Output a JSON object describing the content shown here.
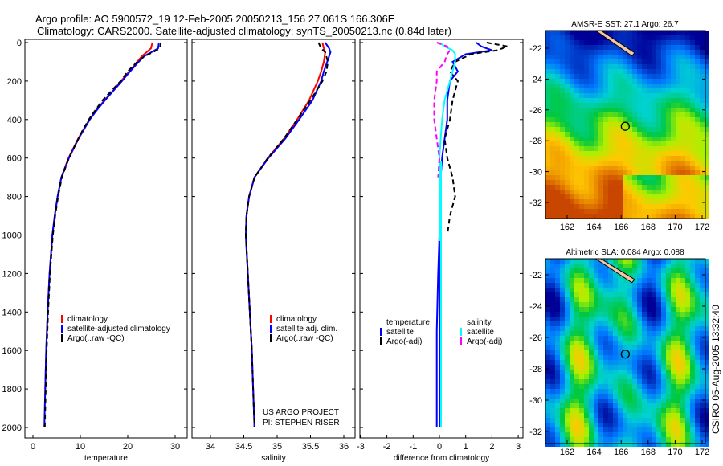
{
  "title_line1": "Argo profile: AO 5900572_19 12-Feb-2005 20050213_156 27.061S 166.306E",
  "title_line2": "Climatology: CARS2000. Satellite-adjusted climatology: synTS_20050213.nc (0.84d later)",
  "credit": "CSIRO 05-Aug-2005 13:32:40",
  "project_note": [
    "US ARGO PROJECT",
    "PI: STEPHEN RISER"
  ],
  "colors": {
    "climatology": "#ff0000",
    "satellite": "#0000ff",
    "argo": "#000000",
    "sal_satellite": "#00ffff",
    "sal_argo": "#ff00ff"
  },
  "chart_data": [
    {
      "type": "line",
      "xlabel": "temperature",
      "ylabel": "",
      "xlim": [
        -1,
        31
      ],
      "ylim": [
        2050,
        -20
      ],
      "xticks": [
        "0",
        "10",
        "20",
        "30"
      ],
      "yticks": [
        "0",
        "200",
        "400",
        "600",
        "800",
        "1000",
        "1200",
        "1400",
        "1600",
        "1800",
        "2000"
      ],
      "legend": [
        "climatology",
        "satellite-adjusted climatology",
        "Argo(..raw -QC)"
      ],
      "depth": [
        0,
        30,
        50,
        70,
        100,
        150,
        200,
        250,
        300,
        350,
        400,
        450,
        500,
        600,
        700,
        800,
        900,
        1000,
        1200,
        1400,
        1600,
        1800,
        2000
      ],
      "series": [
        {
          "name": "climatology",
          "values": [
            25.2,
            24.9,
            24.0,
            23.0,
            22.0,
            20.3,
            18.6,
            16.9,
            15.1,
            13.4,
            11.9,
            10.7,
            9.5,
            7.5,
            6.0,
            5.2,
            4.6,
            4.1,
            3.5,
            3.1,
            2.8,
            2.6,
            null
          ]
        },
        {
          "name": "satellite-adjusted climatology",
          "values": [
            26.6,
            26.4,
            25.0,
            23.5,
            22.3,
            20.5,
            18.8,
            17.0,
            15.2,
            13.5,
            12.0,
            10.8,
            9.6,
            7.6,
            6.0,
            5.2,
            4.6,
            4.1,
            3.5,
            3.1,
            2.8,
            2.6,
            2.4
          ]
        },
        {
          "name": "Argo(..raw -QC)",
          "values": [
            27.0,
            26.8,
            25.3,
            23.6,
            22.0,
            20.0,
            18.5,
            16.6,
            14.7,
            13.2,
            11.8,
            10.6,
            9.6,
            7.6,
            6.1,
            5.3,
            4.7,
            4.2,
            3.6,
            3.2,
            2.9,
            2.7,
            2.5
          ]
        }
      ]
    },
    {
      "type": "line",
      "xlabel": "salinity",
      "xlim": [
        33.7,
        36.2
      ],
      "ylim": [
        2050,
        -20
      ],
      "xticks": [
        "34",
        "34.5",
        "35",
        "35.5",
        "36"
      ],
      "legend": [
        "climatology",
        "satellite adj. clim.",
        "Argo(..raw -QC)"
      ],
      "depth": [
        0,
        30,
        50,
        100,
        150,
        200,
        300,
        400,
        500,
        600,
        700,
        800,
        900,
        1000,
        1200,
        1400,
        1600,
        1800,
        2000
      ],
      "series": [
        {
          "name": "climatology",
          "values": [
            35.68,
            35.7,
            35.72,
            35.7,
            35.66,
            35.61,
            35.48,
            35.3,
            35.1,
            34.86,
            34.66,
            34.58,
            34.54,
            34.53,
            34.56,
            34.59,
            34.62,
            34.64,
            34.66
          ]
        },
        {
          "name": "satellite adj. clim.",
          "values": [
            35.72,
            35.78,
            35.8,
            35.75,
            35.7,
            35.66,
            35.53,
            35.33,
            35.12,
            34.87,
            34.66,
            34.58,
            34.54,
            34.53,
            34.56,
            34.59,
            34.62,
            34.64,
            34.66
          ]
        },
        {
          "name": "Argo(..raw -QC)",
          "values": [
            35.62,
            35.66,
            35.72,
            35.76,
            35.74,
            35.68,
            35.5,
            35.3,
            35.1,
            34.86,
            34.66,
            34.58,
            34.54,
            34.53,
            34.56,
            34.59,
            34.62,
            34.64,
            34.66
          ]
        }
      ]
    },
    {
      "type": "line",
      "xlabel": "difference from climatology",
      "xlim": [
        -3,
        3
      ],
      "ylim": [
        2050,
        -20
      ],
      "xticks": [
        "-3",
        "-2",
        "-1",
        "0",
        "1",
        "2",
        "3"
      ],
      "legend_temperature": {
        "title": "temperature",
        "items": [
          "satellite",
          "Argo(-adj)"
        ]
      },
      "legend_salinity": {
        "title": "salinity",
        "items": [
          "satellite",
          "Argo(-adj)"
        ]
      },
      "depth": [
        0,
        20,
        40,
        60,
        100,
        150,
        200,
        300,
        400,
        500,
        600,
        700,
        800,
        900,
        1000,
        1200,
        1500,
        2000
      ],
      "series": [
        {
          "name": "temperature satellite",
          "values": [
            1.4,
            1.6,
            2.0,
            1.0,
            0.5,
            0.7,
            0.4,
            0.3,
            0.3,
            0.2,
            0.1,
            0.05,
            0.0,
            0.0,
            0.0,
            -0.05,
            -0.1,
            -0.1
          ]
        },
        {
          "name": "temperature Argo(-adj)",
          "values": [
            1.8,
            2.6,
            2.2,
            1.2,
            0.6,
            0.4,
            0.7,
            0.5,
            0.4,
            0.2,
            0.3,
            0.5,
            0.6,
            0.4,
            0.3,
            null,
            null,
            null
          ]
        },
        {
          "name": "salinity satellite",
          "values": [
            0.0,
            0.2,
            0.5,
            0.6,
            0.6,
            0.5,
            0.4,
            0.2,
            0.1,
            0.05,
            0.0,
            0.0,
            0.0,
            0.0,
            0.0,
            0.0,
            0.0,
            0.0
          ]
        },
        {
          "name": "salinity Argo(-adj)",
          "values": [
            -0.1,
            0.3,
            0.4,
            0.3,
            0.2,
            -0.1,
            -0.1,
            -0.2,
            -0.2,
            -0.1,
            0.0,
            -0.05,
            null,
            null,
            null,
            null,
            null,
            null
          ]
        }
      ]
    }
  ],
  "maps": [
    {
      "title": "AMSR-E SST: 27.1  Argo: 26.7",
      "xticks": [
        "162",
        "164",
        "166",
        "168",
        "170",
        "172"
      ],
      "yticks": [
        "-22",
        "-24",
        "-26",
        "-28",
        "-30",
        "-32"
      ]
    },
    {
      "title": "Altimetric SLA: 0.084  Argo: 0.088",
      "xticks": [
        "162",
        "164",
        "166",
        "168",
        "170",
        "172"
      ],
      "yticks": [
        "-22",
        "-24",
        "-26",
        "-28",
        "-30",
        "-32"
      ]
    }
  ]
}
